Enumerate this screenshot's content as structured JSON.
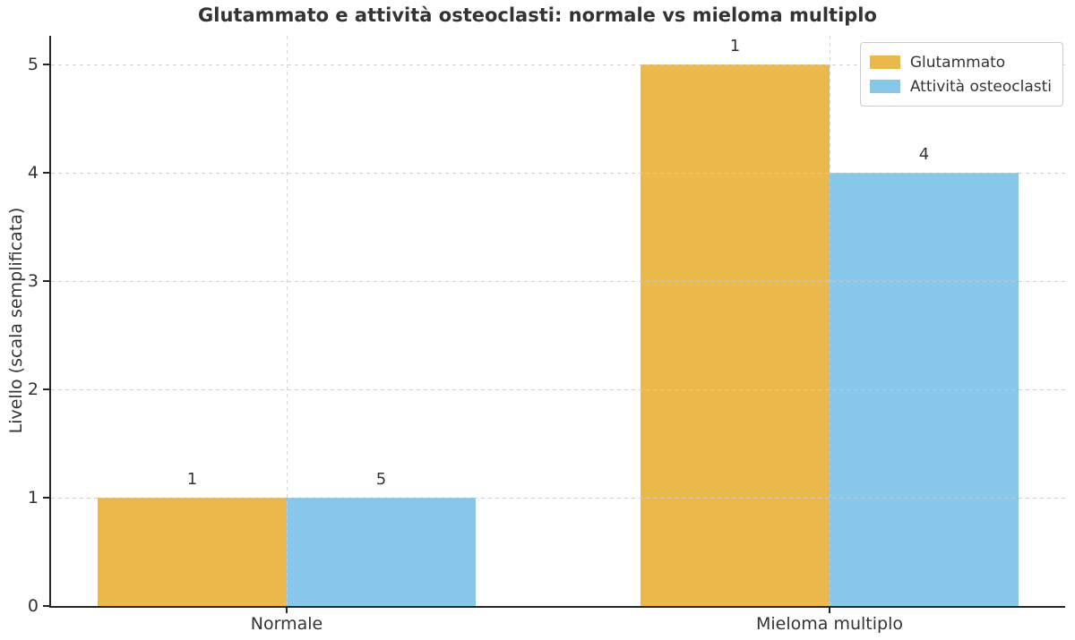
{
  "chart_data": {
    "type": "bar",
    "title": "Glutammato e attività osteoclasti: normale vs mieloma multiplo",
    "ylabel": "Livello (scala semplificata)",
    "xlabel": "",
    "categories": [
      "Normale",
      "Mieloma multiplo"
    ],
    "series": [
      {
        "name": "Glutammato",
        "color": "#EBB84B",
        "values": [
          1,
          5
        ]
      },
      {
        "name": "Attività osteoclasti",
        "color": "#87C7EA",
        "values": [
          1,
          4
        ]
      }
    ],
    "bar_value_labels": [
      [
        "1",
        "5"
      ],
      [
        "1",
        "4"
      ]
    ],
    "yticks": [
      0,
      1,
      2,
      3,
      4,
      5
    ],
    "ylim": [
      0,
      5.265
    ],
    "grid": true,
    "grid_style": "dashed",
    "legend_position": "top-right",
    "colors": {
      "background": "#ffffff",
      "text": "#333333",
      "axis": "#262626",
      "grid": "#cdcdcd"
    }
  }
}
